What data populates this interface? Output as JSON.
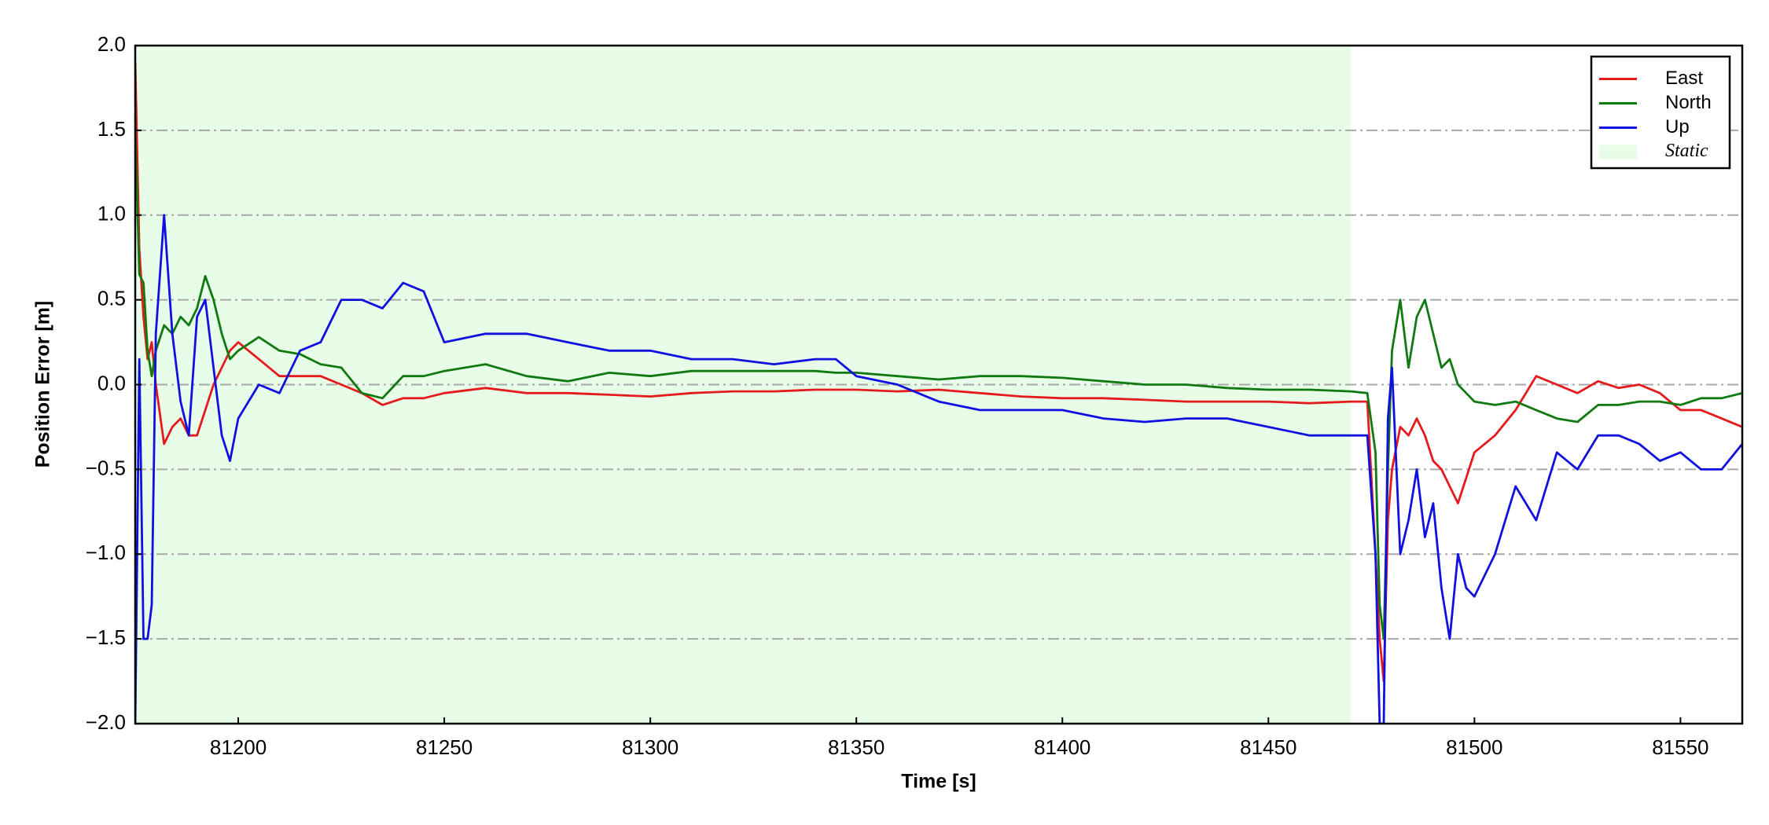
{
  "chart_data": {
    "type": "line",
    "xlabel": "Time [s]",
    "ylabel": "Position Error [m]",
    "xlim": [
      81175,
      81565
    ],
    "ylim": [
      -2.0,
      2.0
    ],
    "xticks": [
      81200,
      81250,
      81300,
      81350,
      81400,
      81450,
      81500,
      81550
    ],
    "yticks": [
      {
        "value": -2.0,
        "label": "−2.0"
      },
      {
        "value": -1.5,
        "label": "−1.5"
      },
      {
        "value": -1.0,
        "label": "−1.0"
      },
      {
        "value": -0.5,
        "label": "−0.5"
      },
      {
        "value": 0.0,
        "label": "0.0"
      },
      {
        "value": 0.5,
        "label": "0.5"
      },
      {
        "value": 1.0,
        "label": "1.0"
      },
      {
        "value": 1.5,
        "label": "1.5"
      },
      {
        "value": 2.0,
        "label": "2.0"
      }
    ],
    "grid": true,
    "legend": "upper right",
    "region": {
      "name": "Static",
      "color": "#e8fde8",
      "x0": 81175,
      "x1": 81470
    },
    "x": [
      81175,
      81176,
      81177,
      81178,
      81179,
      81180,
      81182,
      81184,
      81186,
      81188,
      81190,
      81192,
      81194,
      81196,
      81198,
      81200,
      81205,
      81210,
      81215,
      81220,
      81225,
      81230,
      81235,
      81240,
      81245,
      81250,
      81260,
      81270,
      81280,
      81290,
      81300,
      81310,
      81320,
      81330,
      81340,
      81345,
      81350,
      81360,
      81370,
      81380,
      81390,
      81400,
      81410,
      81420,
      81430,
      81440,
      81450,
      81460,
      81470,
      81474,
      81476,
      81477,
      81478,
      81479,
      81480,
      81482,
      81484,
      81486,
      81488,
      81490,
      81492,
      81494,
      81496,
      81498,
      81500,
      81505,
      81510,
      81515,
      81520,
      81525,
      81530,
      81535,
      81540,
      81545,
      81550,
      81555,
      81560,
      81565
    ],
    "series": [
      {
        "name": "East",
        "color": "#e41a1c",
        "values": [
          1.9,
          0.8,
          0.4,
          0.15,
          0.25,
          0.0,
          -0.35,
          -0.25,
          -0.2,
          -0.3,
          -0.3,
          -0.15,
          0.0,
          0.1,
          0.2,
          0.25,
          0.15,
          0.05,
          0.05,
          0.05,
          0.0,
          -0.05,
          -0.12,
          -0.08,
          -0.08,
          -0.05,
          -0.02,
          -0.05,
          -0.05,
          -0.06,
          -0.07,
          -0.05,
          -0.04,
          -0.04,
          -0.03,
          -0.03,
          -0.03,
          -0.04,
          -0.03,
          -0.05,
          -0.07,
          -0.08,
          -0.08,
          -0.09,
          -0.1,
          -0.1,
          -0.1,
          -0.11,
          -0.1,
          -0.1,
          -1.0,
          -1.5,
          -1.75,
          -0.8,
          -0.5,
          -0.25,
          -0.3,
          -0.2,
          -0.3,
          -0.45,
          -0.5,
          -0.6,
          -0.7,
          -0.55,
          -0.4,
          -0.3,
          -0.15,
          0.05,
          0.0,
          -0.05,
          0.02,
          -0.02,
          0.0,
          -0.05,
          -0.15,
          -0.15,
          -0.2,
          -0.25
        ]
      },
      {
        "name": "North",
        "color": "#107a10",
        "values": [
          1.5,
          0.65,
          0.6,
          0.2,
          0.05,
          0.2,
          0.35,
          0.3,
          0.4,
          0.35,
          0.45,
          0.64,
          0.5,
          0.3,
          0.15,
          0.2,
          0.28,
          0.2,
          0.18,
          0.12,
          0.1,
          -0.05,
          -0.08,
          0.05,
          0.05,
          0.08,
          0.12,
          0.05,
          0.02,
          0.07,
          0.05,
          0.08,
          0.08,
          0.08,
          0.08,
          0.07,
          0.07,
          0.05,
          0.03,
          0.05,
          0.05,
          0.04,
          0.02,
          0.0,
          0.0,
          -0.02,
          -0.03,
          -0.03,
          -0.04,
          -0.05,
          -0.4,
          -1.3,
          -1.5,
          -0.5,
          0.2,
          0.5,
          0.1,
          0.4,
          0.5,
          0.3,
          0.1,
          0.15,
          0.0,
          -0.05,
          -0.1,
          -0.12,
          -0.1,
          -0.15,
          -0.2,
          -0.22,
          -0.12,
          -0.12,
          -0.1,
          -0.1,
          -0.12,
          -0.08,
          -0.08,
          -0.05
        ]
      },
      {
        "name": "Up",
        "color": "#1010e0",
        "values": [
          -2.0,
          0.15,
          -1.5,
          -1.5,
          -1.3,
          0.3,
          1.0,
          0.3,
          -0.1,
          -0.3,
          0.4,
          0.5,
          0.1,
          -0.3,
          -0.45,
          -0.2,
          0.0,
          -0.05,
          0.2,
          0.25,
          0.5,
          0.5,
          0.45,
          0.6,
          0.55,
          0.25,
          0.3,
          0.3,
          0.25,
          0.2,
          0.2,
          0.15,
          0.15,
          0.12,
          0.15,
          0.15,
          0.05,
          0.0,
          -0.1,
          -0.15,
          -0.15,
          -0.15,
          -0.2,
          -0.22,
          -0.2,
          -0.2,
          -0.25,
          -0.3,
          -0.3,
          -0.3,
          -1.0,
          -2.0,
          -2.0,
          -0.2,
          0.1,
          -1.0,
          -0.8,
          -0.5,
          -0.9,
          -0.7,
          -1.2,
          -1.5,
          -1.0,
          -1.2,
          -1.25,
          -1.0,
          -0.6,
          -0.8,
          -0.4,
          -0.5,
          -0.3,
          -0.3,
          -0.35,
          -0.45,
          -0.4,
          -0.5,
          -0.5,
          -0.35
        ]
      }
    ]
  }
}
